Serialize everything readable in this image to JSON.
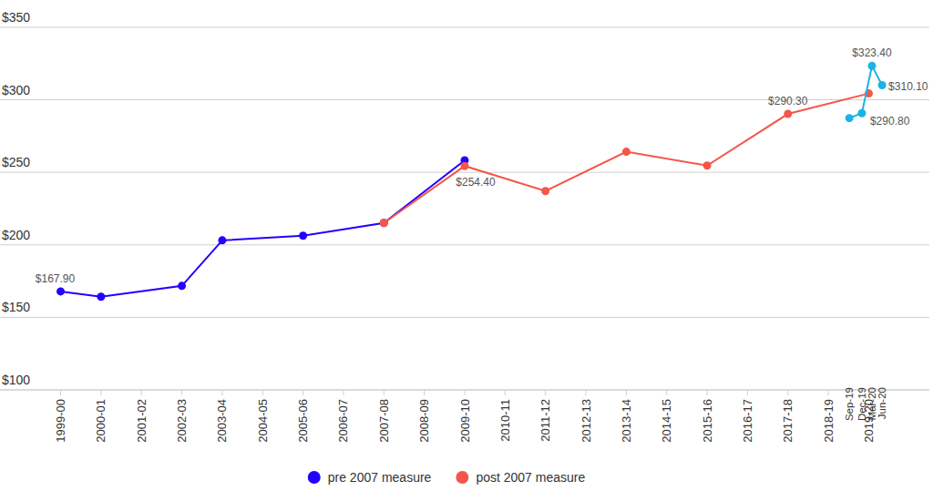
{
  "chart_data": {
    "type": "line",
    "xlim": [
      1997.5,
      2020.5
    ],
    "xticks": [
      {
        "value": 1999,
        "label": "1999-00"
      },
      {
        "value": 2000,
        "label": "2000-01"
      },
      {
        "value": 2001,
        "label": "2001-02"
      },
      {
        "value": 2002,
        "label": "2002-03"
      },
      {
        "value": 2003,
        "label": "2003-04"
      },
      {
        "value": 2004,
        "label": "2004-05"
      },
      {
        "value": 2005,
        "label": "2005-06"
      },
      {
        "value": 2006,
        "label": "2006-07"
      },
      {
        "value": 2007,
        "label": "2007-08"
      },
      {
        "value": 2008,
        "label": "2008-09"
      },
      {
        "value": 2009,
        "label": "2009-10"
      },
      {
        "value": 2010,
        "label": "2010-11"
      },
      {
        "value": 2011,
        "label": "2011-12"
      },
      {
        "value": 2012,
        "label": "2012-13"
      },
      {
        "value": 2013,
        "label": "2013-14"
      },
      {
        "value": 2014,
        "label": "2014-15"
      },
      {
        "value": 2015,
        "label": "2015-16"
      },
      {
        "value": 2016,
        "label": "2016-17"
      },
      {
        "value": 2017,
        "label": "2017-18"
      },
      {
        "value": 2018,
        "label": "2018-19"
      },
      {
        "value": 2019,
        "label": "2019-20"
      }
    ],
    "ylim": [
      100,
      350
    ],
    "yticks": [
      {
        "value": 100,
        "label": "$100"
      },
      {
        "value": 150,
        "label": "$150"
      },
      {
        "value": 200,
        "label": "$200"
      },
      {
        "value": 250,
        "label": "$250"
      },
      {
        "value": 300,
        "label": "$300"
      },
      {
        "value": 350,
        "label": "$350"
      }
    ],
    "grid": true,
    "legend": "bottom",
    "marker": "circle",
    "data_labels": true,
    "series": [
      {
        "name": "pre 2007 measure",
        "color": "#2200ff",
        "x": [
          1999,
          2000,
          2002,
          2003,
          2005,
          2007,
          2009
        ],
        "values": [
          167.9,
          164.2,
          171.7,
          203.1,
          206.3,
          215.1,
          258.3
        ],
        "value_labels": [
          "$167.90",
          null,
          null,
          null,
          null,
          null,
          null
        ]
      },
      {
        "name": "post 2007 measure",
        "color": "#f4564a",
        "x": [
          2007,
          2009,
          2011,
          2013,
          2015,
          2017,
          2019
        ],
        "values": [
          215.1,
          254.4,
          237.1,
          264.2,
          254.7,
          290.3,
          304.4
        ],
        "value_labels": [
          null,
          "$254.40",
          null,
          null,
          null,
          "$290.30",
          null
        ]
      },
      {
        "color": "#1ab3e6",
        "x": [
          2018.52,
          2018.83,
          2019.08,
          2019.33
        ],
        "point_labels": [
          "Sep-19",
          "Dec-19",
          "Mar-20",
          "Jun-20"
        ],
        "values": [
          287.4,
          290.8,
          323.4,
          310.1
        ],
        "value_labels": [
          null,
          "$290.80",
          "$323.40",
          "$310.10"
        ]
      }
    ]
  }
}
